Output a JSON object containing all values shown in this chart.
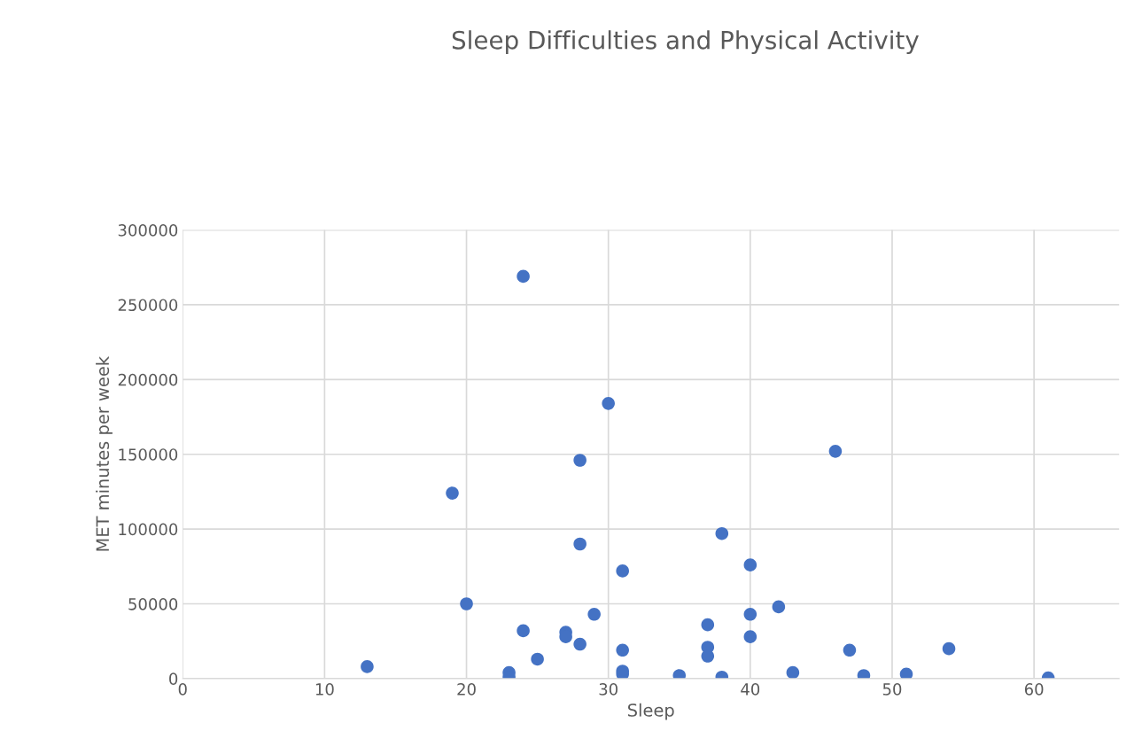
{
  "chart_data": {
    "type": "scatter",
    "title": "Sleep Difficulties and Physical Activity",
    "xlabel": "Sleep",
    "ylabel": "MET minutes per week",
    "series": [
      {
        "color": "#4472c4",
        "x": [
          13,
          19,
          20,
          23,
          23,
          24,
          24,
          25,
          27,
          27,
          28,
          28,
          28,
          29,
          30,
          31,
          31,
          31,
          31,
          35,
          37,
          37,
          37,
          38,
          38,
          40,
          40,
          40,
          42,
          43,
          46,
          47,
          48,
          51,
          54,
          61
        ],
        "values": [
          8000,
          124000,
          50000,
          4000,
          1000,
          269000,
          32000,
          13000,
          31000,
          28000,
          146000,
          90000,
          23000,
          43000,
          184000,
          72000,
          19000,
          5000,
          3000,
          2000,
          36000,
          21000,
          15000,
          97000,
          1000,
          76000,
          43000,
          28000,
          48000,
          4000,
          152000,
          19000,
          2000,
          3000,
          20000,
          500
        ]
      }
    ],
    "xlim": [
      0,
      66
    ],
    "xticks": [
      0,
      10,
      20,
      30,
      40,
      50,
      60
    ],
    "ylim": [
      0,
      300000
    ],
    "yticks": [
      0,
      50000,
      100000,
      150000,
      200000,
      250000,
      300000
    ],
    "grid": true,
    "marker": "circle",
    "legend": false
  }
}
